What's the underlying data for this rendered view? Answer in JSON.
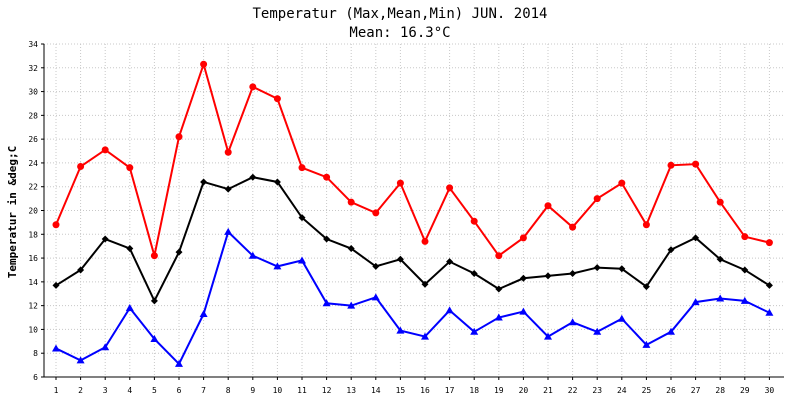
{
  "chart_data": {
    "type": "line",
    "title": "Temperatur (Max,Mean,Min) JUN. 2014",
    "subtitle": "Mean: 16.3°C",
    "ylabel": "Temperatur in &deg;C",
    "xlabel": "",
    "ylim": [
      6,
      34
    ],
    "yticks": [
      "6",
      "8",
      "10",
      "12",
      "14",
      "16",
      "18",
      "20",
      "22",
      "24",
      "26",
      "28",
      "30",
      "32",
      "34"
    ],
    "categories": [
      "1",
      "2",
      "3",
      "4",
      "5",
      "6",
      "7",
      "8",
      "9",
      "10",
      "11",
      "12",
      "13",
      "14",
      "15",
      "16",
      "17",
      "18",
      "19",
      "20",
      "21",
      "22",
      "23",
      "24",
      "25",
      "26",
      "27",
      "28",
      "29",
      "30"
    ],
    "grid": true,
    "series": [
      {
        "color": "#ff0000",
        "marker": "circle",
        "values": [
          18.8,
          23.7,
          25.1,
          23.6,
          16.2,
          26.2,
          32.3,
          24.9,
          30.4,
          29.4,
          23.6,
          22.8,
          20.7,
          19.8,
          22.3,
          17.4,
          21.9,
          19.1,
          16.2,
          17.7,
          20.4,
          18.6,
          21.0,
          22.3,
          18.8,
          23.8,
          23.9,
          20.7,
          17.8,
          17.3
        ]
      },
      {
        "color": "#000000",
        "marker": "diamond",
        "values": [
          13.7,
          15.0,
          17.6,
          16.8,
          12.4,
          16.5,
          22.4,
          21.8,
          22.8,
          22.4,
          19.4,
          17.6,
          16.8,
          15.3,
          15.9,
          13.8,
          15.7,
          14.7,
          13.4,
          14.3,
          14.5,
          14.7,
          15.2,
          15.1,
          13.6,
          16.7,
          17.7,
          15.9,
          15.0,
          13.7
        ]
      },
      {
        "color": "#0000ff",
        "marker": "triangle",
        "values": [
          8.4,
          7.4,
          8.5,
          11.8,
          9.2,
          7.1,
          11.3,
          18.2,
          16.2,
          15.3,
          15.8,
          12.2,
          12.0,
          12.7,
          9.9,
          9.4,
          11.6,
          9.8,
          11.0,
          11.5,
          9.4,
          10.6,
          9.8,
          10.9,
          8.7,
          9.8,
          12.3,
          12.6,
          12.4,
          11.4
        ]
      }
    ]
  }
}
